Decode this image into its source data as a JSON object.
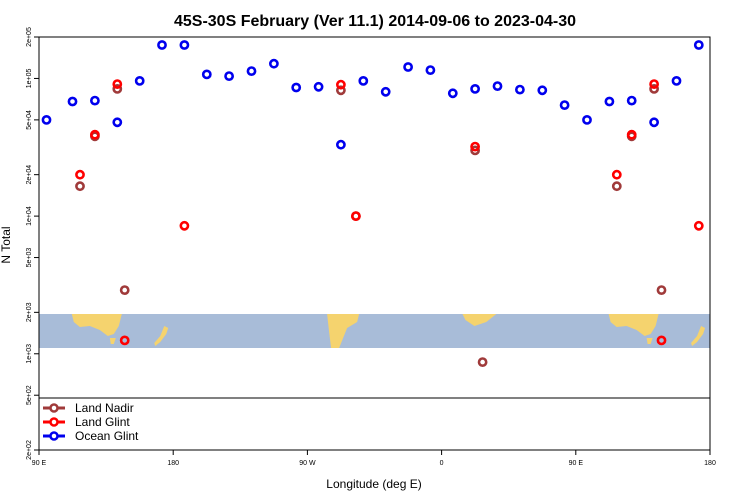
{
  "chart_data": {
    "type": "scatter",
    "title": "45S-30S February (Ver 11.1)   2014-09-06 to 2023-04-30",
    "xlabel": "Longitude (deg E)",
    "ylabel": "N Total",
    "x_scale": "longitude, wrapping from 90 E through 180 to 180",
    "y_scale": "log",
    "ylim": [
      200,
      200000
    ],
    "x_ticks": [
      "90 E",
      "180",
      "90 W",
      "0",
      "90 E",
      "180"
    ],
    "y_ticks": [
      "2e+02",
      "5e+02",
      "1e+03",
      "2e+03",
      "5e+03",
      "1e+04",
      "2e+04",
      "5e+04",
      "1e+05",
      "2e+05"
    ],
    "grid": false,
    "legend_position": "bottom-left",
    "colors": {
      "land_nadir": "#a03a3a",
      "land_glint": "#ff0000",
      "ocean_glint": "#0000ee",
      "ocean_band": "#a8bcd8",
      "land_band": "#f5d36e"
    },
    "series": [
      {
        "name": "Land Nadir",
        "points": [
          {
            "lon": 117.5,
            "y": 16500
          },
          {
            "lon": 127.5,
            "y": 38000
          },
          {
            "lon": 142.5,
            "y": 84000
          },
          {
            "lon": 147.5,
            "y": 2900
          },
          {
            "lon": -172.5,
            "y": 240
          },
          {
            "lon": -67.5,
            "y": 82000
          },
          {
            "lon": -57.5,
            "y": 10000
          },
          {
            "lon": 22.5,
            "y": 30000
          },
          {
            "lon": 27.5,
            "y": 870
          },
          {
            "lon": 117.5,
            "y": 16500
          },
          {
            "lon": 127.5,
            "y": 38000
          },
          {
            "lon": 142.5,
            "y": 84000
          },
          {
            "lon": 147.5,
            "y": 2900
          },
          {
            "lon": 172.5,
            "y": 240
          }
        ]
      },
      {
        "name": "Land Glint",
        "points": [
          {
            "lon": 117.5,
            "y": 20000
          },
          {
            "lon": 127.5,
            "y": 39000
          },
          {
            "lon": 142.5,
            "y": 91000
          },
          {
            "lon": 147.5,
            "y": 1250
          },
          {
            "lon": -172.5,
            "y": 8500
          },
          {
            "lon": -67.5,
            "y": 90000
          },
          {
            "lon": -57.5,
            "y": 10000
          },
          {
            "lon": 22.5,
            "y": 32000
          },
          {
            "lon": 117.5,
            "y": 20000
          },
          {
            "lon": 127.5,
            "y": 39000
          },
          {
            "lon": 142.5,
            "y": 91000
          },
          {
            "lon": 147.5,
            "y": 1250
          },
          {
            "lon": 172.5,
            "y": 8500
          }
        ]
      },
      {
        "name": "Ocean Glint",
        "points": [
          {
            "lon": 95,
            "y": 50000
          },
          {
            "lon": 112.5,
            "y": 68000
          },
          {
            "lon": 127.5,
            "y": 69000
          },
          {
            "lon": 142.5,
            "y": 48000
          },
          {
            "lon": 157.5,
            "y": 96000
          },
          {
            "lon": 172.5,
            "y": 175000
          },
          {
            "lon": -172.5,
            "y": 175000
          },
          {
            "lon": -157.5,
            "y": 107000
          },
          {
            "lon": -142.5,
            "y": 104000
          },
          {
            "lon": -127.5,
            "y": 113000
          },
          {
            "lon": -112.5,
            "y": 128000
          },
          {
            "lon": -97.5,
            "y": 86000
          },
          {
            "lon": -82.5,
            "y": 87000
          },
          {
            "lon": -67.5,
            "y": 33000
          },
          {
            "lon": -52.5,
            "y": 96000
          },
          {
            "lon": -37.5,
            "y": 80000
          },
          {
            "lon": -22.5,
            "y": 121000
          },
          {
            "lon": -7.5,
            "y": 115000
          },
          {
            "lon": 7.5,
            "y": 78000
          },
          {
            "lon": 22.5,
            "y": 84000
          },
          {
            "lon": 37.5,
            "y": 88000
          },
          {
            "lon": 52.5,
            "y": 83000
          },
          {
            "lon": 67.5,
            "y": 82000
          },
          {
            "lon": 82.5,
            "y": 64000
          },
          {
            "lon": 97.5,
            "y": 50000
          },
          {
            "lon": 112.5,
            "y": 68000
          },
          {
            "lon": 127.5,
            "y": 69000
          },
          {
            "lon": 142.5,
            "y": 48000
          },
          {
            "lon": 157.5,
            "y": 96000
          },
          {
            "lon": 172.5,
            "y": 175000
          }
        ]
      }
    ]
  }
}
